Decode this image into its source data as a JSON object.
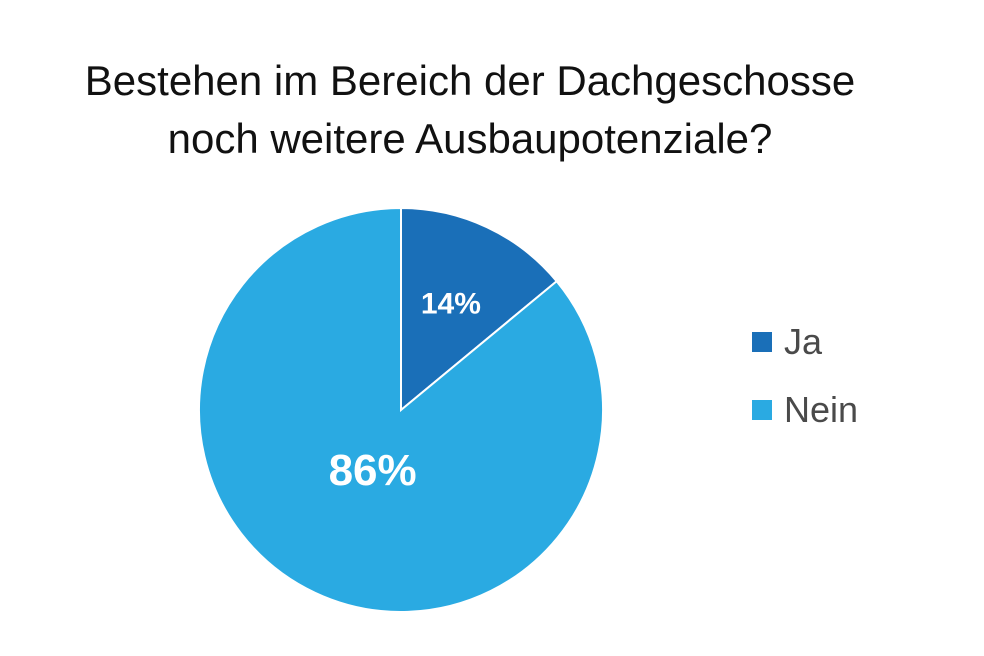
{
  "chart_data": {
    "type": "pie",
    "title": [
      "Bestehen im Bereich der Dachgeschosse",
      "noch weitere  Ausbaupotenziale?"
    ],
    "slices": [
      {
        "label": "Ja",
        "value": 14,
        "value_label": "14%",
        "color": "#1a6fb8"
      },
      {
        "label": "Nein",
        "value": 86,
        "value_label": "86%",
        "color": "#2aaae2"
      }
    ],
    "legend_position": "right"
  }
}
